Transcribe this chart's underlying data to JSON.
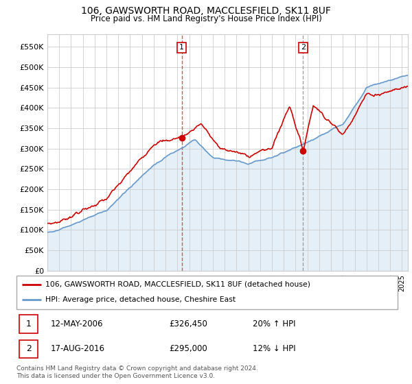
{
  "title": "106, GAWSWORTH ROAD, MACCLESFIELD, SK11 8UF",
  "subtitle": "Price paid vs. HM Land Registry's House Price Index (HPI)",
  "legend_label_red": "106, GAWSWORTH ROAD, MACCLESFIELD, SK11 8UF (detached house)",
  "legend_label_blue": "HPI: Average price, detached house, Cheshire East",
  "sale1_date": "12-MAY-2006",
  "sale1_price": 326450,
  "sale1_hpi_pct": "20% ↑ HPI",
  "sale1_label": "1",
  "sale1_x": 2006.37,
  "sale2_date": "17-AUG-2016",
  "sale2_price": 295000,
  "sale2_hpi_pct": "12% ↓ HPI",
  "sale2_label": "2",
  "sale2_x": 2016.63,
  "footnote": "Contains HM Land Registry data © Crown copyright and database right 2024.\nThis data is licensed under the Open Government Licence v3.0.",
  "xmin": 1995,
  "xmax": 2025.5,
  "ymin": 0,
  "ymax": 580000,
  "yticks": [
    0,
    50000,
    100000,
    150000,
    200000,
    250000,
    300000,
    350000,
    400000,
    450000,
    500000,
    550000
  ],
  "ytick_labels": [
    "£0",
    "£50K",
    "£100K",
    "£150K",
    "£200K",
    "£250K",
    "£300K",
    "£350K",
    "£400K",
    "£450K",
    "£500K",
    "£550K"
  ],
  "red_color": "#cc0000",
  "blue_color": "#6699cc",
  "blue_fill_color": "#cce0f0",
  "sale1_vline_color": "#cc4444",
  "sale2_vline_color": "#999999",
  "background_color": "#ffffff",
  "grid_color": "#cccccc",
  "box_edge_color": "#cc0000"
}
